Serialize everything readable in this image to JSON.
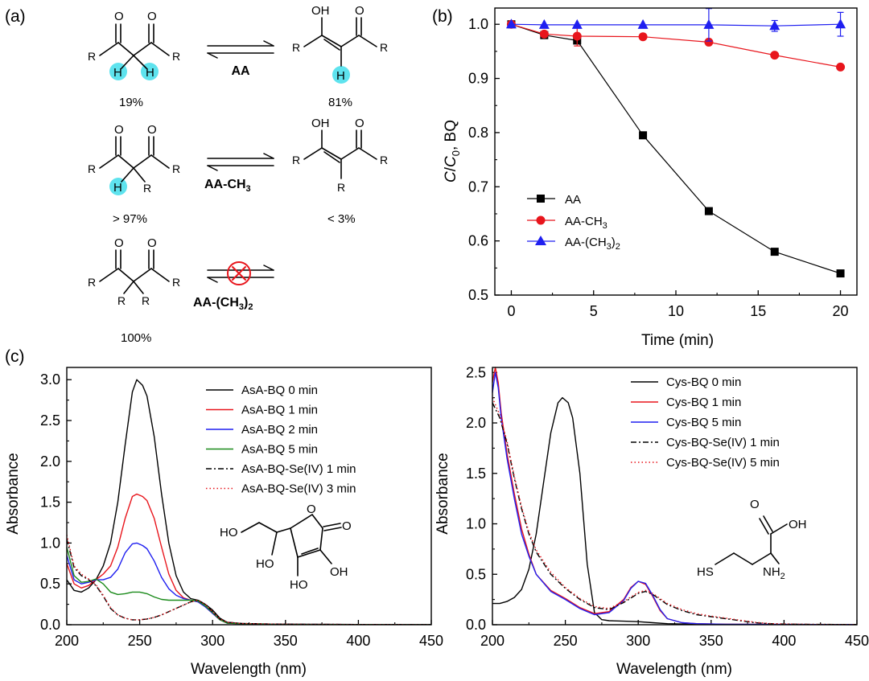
{
  "panel_labels": [
    "(a)",
    "(b)",
    "(c)"
  ],
  "scheme": {
    "rows": [
      {
        "reagent": "AA",
        "left_pct": "19%",
        "right_pct": "81%",
        "blocked": false
      },
      {
        "reagent": "AA-CH3",
        "reagent_main": "AA-CH",
        "reagent_sub": "3",
        "left_pct": "> 97%",
        "right_pct": "< 3%",
        "blocked": false
      },
      {
        "reagent": "AA-(CH3)2",
        "reagent_main": "AA-(CH",
        "reagent_sub": "3",
        "reagent_tail": ")",
        "reagent_sub2": "2",
        "left_pct": "100%",
        "right_pct": "",
        "blocked": true
      }
    ],
    "atoms": {
      "O": "O",
      "OH": "OH",
      "R": "R",
      "H": "H"
    },
    "highlight_color": "#5ee3ee"
  },
  "chart_data": [
    {
      "type": "line",
      "panel": "(b)",
      "xlabel": "Time (min)",
      "ylabel": "C/C0, BQ",
      "ylabel_parts": {
        "c": "C",
        "slash": "/",
        "c0": "C",
        "sub": "0",
        "rest": ", BQ"
      },
      "xlim": [
        -1,
        21
      ],
      "ylim": [
        0.5,
        1.03
      ],
      "xticks": [
        0,
        5,
        10,
        15,
        20
      ],
      "yticks": [
        0.5,
        0.6,
        0.7,
        0.8,
        0.9,
        1.0
      ],
      "ytick_labels": [
        "0.5",
        "0.6",
        "0.7",
        "0.8",
        "0.9",
        "1.0"
      ],
      "legend_position": "middle-left",
      "series": [
        {
          "name": "AA",
          "legend_main": "AA",
          "color": "#000000",
          "marker": "square",
          "x": [
            0,
            2,
            4,
            8,
            12,
            16,
            20
          ],
          "y": [
            1.0,
            0.98,
            0.97,
            0.795,
            0.655,
            0.58,
            0.54
          ],
          "err": [
            0,
            0,
            0,
            0,
            0,
            0,
            0
          ]
        },
        {
          "name": "AA-CH3",
          "legend_main": "AA-CH",
          "legend_sub": "3",
          "color": "#e8151c",
          "marker": "circle",
          "x": [
            0,
            2,
            4,
            8,
            12,
            16,
            20
          ],
          "y": [
            1.0,
            0.982,
            0.978,
            0.977,
            0.967,
            0.943,
            0.921
          ],
          "err": [
            0,
            0,
            0.018,
            0,
            0,
            0,
            0
          ]
        },
        {
          "name": "AA-(CH3)2",
          "legend_main": "AA-(CH",
          "legend_sub": "3",
          "legend_tail": ")",
          "legend_sub2": "2",
          "color": "#1f1ff0",
          "marker": "triangle",
          "x": [
            0,
            2,
            4,
            8,
            12,
            16,
            20
          ],
          "y": [
            1.0,
            0.999,
            0.999,
            0.999,
            0.999,
            0.997,
            1.0
          ],
          "err": [
            0,
            0,
            0,
            0,
            0.03,
            0.01,
            0.022
          ]
        }
      ]
    },
    {
      "type": "line",
      "panel": "(c)-left",
      "xlabel": "Wavelength (nm)",
      "ylabel": "Absorbance",
      "xlim": [
        200,
        450
      ],
      "ylim": [
        0,
        3.15
      ],
      "xticks": [
        200,
        250,
        300,
        350,
        400,
        450
      ],
      "yticks": [
        0.0,
        0.5,
        1.0,
        1.5,
        2.0,
        2.5,
        3.0
      ],
      "ytick_labels": [
        "0.0",
        "0.5",
        "1.0",
        "1.5",
        "2.0",
        "2.5",
        "3.0"
      ],
      "legend_position": "top-right",
      "series": [
        {
          "name": "AsA-BQ 0 min",
          "color": "#000000",
          "dash": "solid",
          "x": [
            200,
            205,
            210,
            215,
            220,
            225,
            230,
            235,
            240,
            245,
            248,
            252,
            255,
            260,
            265,
            270,
            275,
            280,
            285,
            290,
            295,
            300,
            305,
            310,
            320,
            340,
            360,
            400,
            450
          ],
          "y": [
            0.55,
            0.42,
            0.4,
            0.45,
            0.55,
            0.72,
            1.0,
            1.5,
            2.2,
            2.85,
            3.0,
            2.93,
            2.8,
            2.3,
            1.6,
            1.0,
            0.6,
            0.4,
            0.32,
            0.3,
            0.25,
            0.18,
            0.08,
            0.03,
            0.015,
            0.008,
            0.005,
            0.003,
            0.002
          ]
        },
        {
          "name": "AsA-BQ 1 min",
          "color": "#e8151c",
          "dash": "solid",
          "x": [
            200,
            205,
            210,
            215,
            220,
            225,
            230,
            235,
            240,
            245,
            248,
            252,
            255,
            260,
            265,
            270,
            275,
            280,
            285,
            290,
            295,
            300,
            305,
            310,
            320,
            340,
            360,
            400,
            450
          ],
          "y": [
            0.75,
            0.5,
            0.45,
            0.48,
            0.55,
            0.62,
            0.72,
            0.95,
            1.3,
            1.57,
            1.6,
            1.57,
            1.52,
            1.3,
            0.95,
            0.62,
            0.42,
            0.33,
            0.3,
            0.28,
            0.22,
            0.14,
            0.06,
            0.02,
            0.012,
            0.006,
            0.004,
            0.003,
            0.002
          ]
        },
        {
          "name": "AsA-BQ 2 min",
          "color": "#1f1ff0",
          "dash": "solid",
          "x": [
            200,
            205,
            210,
            215,
            220,
            225,
            230,
            235,
            240,
            245,
            248,
            252,
            255,
            260,
            265,
            270,
            275,
            280,
            285,
            290,
            295,
            300,
            305,
            310,
            320,
            340,
            360,
            400,
            450
          ],
          "y": [
            0.85,
            0.55,
            0.5,
            0.52,
            0.55,
            0.55,
            0.58,
            0.68,
            0.88,
            0.99,
            1.0,
            0.97,
            0.93,
            0.78,
            0.58,
            0.44,
            0.36,
            0.32,
            0.3,
            0.28,
            0.22,
            0.14,
            0.06,
            0.02,
            0.012,
            0.006,
            0.004,
            0.003,
            0.002
          ]
        },
        {
          "name": "AsA-BQ 5 min",
          "color": "#1a8a1a",
          "dash": "solid",
          "x": [
            200,
            205,
            210,
            215,
            220,
            225,
            230,
            235,
            240,
            245,
            250,
            255,
            260,
            265,
            270,
            275,
            280,
            285,
            290,
            295,
            300,
            305,
            310,
            320,
            340,
            360,
            400,
            450
          ],
          "y": [
            0.95,
            0.6,
            0.52,
            0.53,
            0.56,
            0.5,
            0.4,
            0.37,
            0.38,
            0.4,
            0.4,
            0.38,
            0.34,
            0.31,
            0.3,
            0.3,
            0.3,
            0.3,
            0.29,
            0.23,
            0.15,
            0.06,
            0.02,
            0.012,
            0.006,
            0.004,
            0.003,
            0.002
          ]
        },
        {
          "name": "AsA-BQ-Se(IV) 1 min",
          "color": "#000000",
          "dash": "dashdot",
          "x": [
            200,
            205,
            210,
            215,
            220,
            225,
            230,
            235,
            240,
            245,
            250,
            255,
            260,
            265,
            270,
            275,
            280,
            285,
            290,
            295,
            300,
            305,
            310,
            320,
            340,
            360,
            400,
            450
          ],
          "y": [
            1.05,
            0.7,
            0.6,
            0.55,
            0.48,
            0.35,
            0.2,
            0.12,
            0.08,
            0.06,
            0.06,
            0.07,
            0.09,
            0.12,
            0.16,
            0.2,
            0.24,
            0.28,
            0.3,
            0.25,
            0.16,
            0.07,
            0.03,
            0.015,
            0.008,
            0.005,
            0.003,
            0.002
          ]
        },
        {
          "name": "AsA-BQ-Se(IV) 3 min",
          "color": "#e8151c",
          "dash": "dotted",
          "x": [
            200,
            205,
            210,
            215,
            220,
            225,
            230,
            235,
            240,
            245,
            250,
            255,
            260,
            265,
            270,
            275,
            280,
            285,
            290,
            295,
            300,
            305,
            310,
            320,
            340,
            360,
            400,
            450
          ],
          "y": [
            1.1,
            0.72,
            0.62,
            0.56,
            0.49,
            0.36,
            0.21,
            0.12,
            0.08,
            0.06,
            0.06,
            0.07,
            0.09,
            0.12,
            0.16,
            0.2,
            0.24,
            0.28,
            0.3,
            0.25,
            0.16,
            0.07,
            0.03,
            0.015,
            0.008,
            0.005,
            0.003,
            0.002
          ]
        }
      ],
      "annotation": "ascorbic acid structure"
    },
    {
      "type": "line",
      "panel": "(c)-right",
      "xlabel": "Wavelength (nm)",
      "ylabel": "Absorbance",
      "xlim": [
        200,
        450
      ],
      "ylim": [
        0,
        2.55
      ],
      "xticks": [
        200,
        250,
        300,
        350,
        400,
        450
      ],
      "yticks": [
        0.0,
        0.5,
        1.0,
        1.5,
        2.0,
        2.5
      ],
      "ytick_labels": [
        "0.0",
        "0.5",
        "1.0",
        "1.5",
        "2.0",
        "2.5"
      ],
      "legend_position": "top-right",
      "series": [
        {
          "name": "Cys-BQ 0 min",
          "color": "#000000",
          "dash": "solid",
          "x": [
            200,
            205,
            210,
            215,
            220,
            225,
            230,
            235,
            240,
            245,
            248,
            252,
            255,
            260,
            265,
            270,
            275,
            280,
            290,
            300,
            310,
            320,
            340,
            360,
            400,
            450
          ],
          "y": [
            0.21,
            0.21,
            0.23,
            0.27,
            0.35,
            0.55,
            0.9,
            1.4,
            1.9,
            2.2,
            2.25,
            2.2,
            2.05,
            1.5,
            0.6,
            0.12,
            0.05,
            0.04,
            0.035,
            0.03,
            0.02,
            0.01,
            0.005,
            0.003,
            0.002,
            0.001
          ]
        },
        {
          "name": "Cys-BQ 1 min",
          "color": "#e8151c",
          "dash": "solid",
          "x": [
            200,
            202,
            204,
            206,
            208,
            210,
            215,
            220,
            225,
            230,
            240,
            250,
            260,
            270,
            280,
            290,
            295,
            300,
            305,
            310,
            315,
            320,
            330,
            340,
            360,
            400,
            450
          ],
          "y": [
            2.4,
            2.55,
            2.4,
            2.1,
            1.9,
            1.7,
            1.3,
            0.95,
            0.7,
            0.5,
            0.34,
            0.26,
            0.17,
            0.11,
            0.13,
            0.25,
            0.37,
            0.43,
            0.4,
            0.28,
            0.14,
            0.06,
            0.02,
            0.01,
            0.005,
            0.003,
            0.002
          ]
        },
        {
          "name": "Cys-BQ 5 min",
          "color": "#1f1ff0",
          "dash": "solid",
          "x": [
            200,
            202,
            204,
            206,
            208,
            210,
            215,
            220,
            225,
            230,
            240,
            250,
            260,
            270,
            280,
            290,
            295,
            300,
            305,
            310,
            315,
            320,
            330,
            340,
            360,
            400,
            450
          ],
          "y": [
            2.3,
            2.5,
            2.35,
            2.05,
            1.85,
            1.65,
            1.25,
            0.9,
            0.68,
            0.5,
            0.33,
            0.25,
            0.16,
            0.1,
            0.12,
            0.24,
            0.36,
            0.43,
            0.41,
            0.29,
            0.15,
            0.06,
            0.02,
            0.01,
            0.005,
            0.003,
            0.002
          ]
        },
        {
          "name": "Cys-BQ-Se(IV) 1 min",
          "color": "#000000",
          "dash": "dashdot",
          "x": [
            200,
            205,
            210,
            215,
            220,
            225,
            230,
            240,
            250,
            260,
            270,
            280,
            290,
            300,
            305,
            310,
            320,
            330,
            340,
            350,
            360,
            370,
            380,
            390,
            400,
            420,
            450
          ],
          "y": [
            2.2,
            2.05,
            1.8,
            1.45,
            1.15,
            0.9,
            0.72,
            0.5,
            0.36,
            0.25,
            0.17,
            0.15,
            0.22,
            0.31,
            0.33,
            0.3,
            0.2,
            0.14,
            0.1,
            0.08,
            0.06,
            0.04,
            0.02,
            0.01,
            0.006,
            0.003,
            0.002
          ]
        },
        {
          "name": "Cys-BQ-Se(IV) 5 min",
          "color": "#e8151c",
          "dash": "dotted",
          "x": [
            200,
            205,
            210,
            215,
            220,
            225,
            230,
            240,
            250,
            260,
            270,
            280,
            290,
            300,
            305,
            310,
            320,
            330,
            340,
            350,
            360,
            370,
            380,
            390,
            400,
            420,
            450
          ],
          "y": [
            2.25,
            2.08,
            1.82,
            1.47,
            1.17,
            0.92,
            0.74,
            0.52,
            0.37,
            0.26,
            0.18,
            0.16,
            0.23,
            0.32,
            0.34,
            0.31,
            0.21,
            0.15,
            0.11,
            0.085,
            0.065,
            0.045,
            0.025,
            0.012,
            0.007,
            0.003,
            0.002
          ]
        }
      ],
      "annotation": "cysteine structure"
    }
  ],
  "structures": {
    "asa": {
      "HO_top": "HO",
      "O_ring": "O",
      "O_carbonyl": "O",
      "HO_left": "HO",
      "OH_right": "OH",
      "HO_bottom": "HO"
    },
    "cys": {
      "O": "O",
      "OH": "OH",
      "HS": "HS",
      "NH": "NH",
      "sub": "2"
    }
  }
}
